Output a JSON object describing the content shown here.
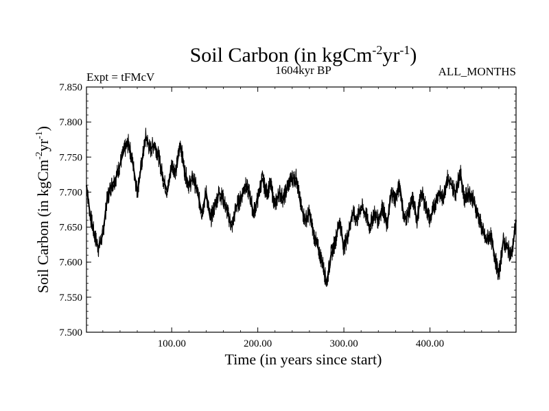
{
  "chart_data": {
    "type": "line",
    "title": "Soil Carbon (in kgCm",
    "title_sup1": "-2",
    "title_mid": "yr",
    "title_sup2": "-1",
    "title_end": ")",
    "subtitle_left": "Expt = tFMcV",
    "subtitle_center": "1604kyr BP",
    "subtitle_right": "ALL_MONTHS",
    "xlabel": "Time (in years since start)",
    "ylabel": "Soil Carbon (in kgCm",
    "ylabel_sup1": "-2",
    "ylabel_mid": "yr",
    "ylabel_sup2": "-1",
    "ylabel_end": ")",
    "xlim": [
      1,
      500
    ],
    "ylim": [
      7.5,
      7.85
    ],
    "xticks": [
      100,
      200,
      300,
      400
    ],
    "xtick_labels": [
      "100.00",
      "200.00",
      "300.00",
      "400.00"
    ],
    "yticks": [
      7.5,
      7.55,
      7.6,
      7.65,
      7.7,
      7.75,
      7.8,
      7.85
    ],
    "ytick_labels": [
      "7.500",
      "7.550",
      "7.600",
      "7.650",
      "7.700",
      "7.750",
      "7.800",
      "7.850"
    ],
    "series": [
      {
        "name": "Soil Carbon",
        "color": "#000000",
        "x": [
          1,
          5,
          10,
          15,
          20,
          25,
          30,
          35,
          40,
          45,
          50,
          55,
          60,
          65,
          70,
          75,
          80,
          85,
          90,
          95,
          100,
          105,
          110,
          115,
          120,
          125,
          130,
          135,
          140,
          145,
          150,
          155,
          160,
          165,
          170,
          175,
          180,
          185,
          190,
          195,
          200,
          205,
          210,
          215,
          220,
          225,
          230,
          235,
          240,
          245,
          250,
          255,
          260,
          265,
          270,
          275,
          280,
          285,
          290,
          295,
          300,
          305,
          310,
          315,
          320,
          325,
          330,
          335,
          340,
          345,
          350,
          355,
          360,
          365,
          370,
          375,
          380,
          385,
          390,
          395,
          400,
          405,
          410,
          415,
          420,
          425,
          430,
          435,
          440,
          445,
          450,
          455,
          460,
          465,
          470,
          475,
          480,
          485,
          490,
          495,
          500
        ],
        "y": [
          7.71,
          7.67,
          7.64,
          7.62,
          7.64,
          7.69,
          7.71,
          7.72,
          7.74,
          7.76,
          7.77,
          7.74,
          7.7,
          7.74,
          7.78,
          7.76,
          7.77,
          7.75,
          7.72,
          7.7,
          7.74,
          7.73,
          7.77,
          7.73,
          7.71,
          7.72,
          7.7,
          7.67,
          7.7,
          7.66,
          7.68,
          7.7,
          7.69,
          7.67,
          7.65,
          7.68,
          7.69,
          7.71,
          7.7,
          7.67,
          7.69,
          7.72,
          7.7,
          7.71,
          7.68,
          7.7,
          7.69,
          7.71,
          7.72,
          7.72,
          7.68,
          7.66,
          7.67,
          7.64,
          7.62,
          7.6,
          7.57,
          7.61,
          7.63,
          7.66,
          7.62,
          7.64,
          7.67,
          7.66,
          7.68,
          7.67,
          7.65,
          7.67,
          7.66,
          7.68,
          7.65,
          7.7,
          7.69,
          7.71,
          7.66,
          7.67,
          7.69,
          7.66,
          7.7,
          7.68,
          7.66,
          7.68,
          7.7,
          7.69,
          7.72,
          7.71,
          7.7,
          7.73,
          7.69,
          7.7,
          7.69,
          7.67,
          7.65,
          7.63,
          7.64,
          7.61,
          7.58,
          7.63,
          7.62,
          7.61,
          7.66
        ]
      }
    ]
  }
}
